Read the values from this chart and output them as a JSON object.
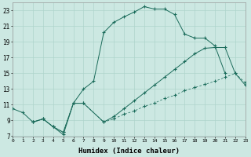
{
  "xlabel": "Humidex (Indice chaleur)",
  "background_color": "#cce8e2",
  "line_color": "#1a6b5a",
  "grid_color": "#aed4cc",
  "xlim": [
    0,
    23
  ],
  "ylim": [
    7,
    24
  ],
  "xticks": [
    0,
    1,
    2,
    3,
    4,
    5,
    6,
    7,
    8,
    9,
    10,
    11,
    12,
    13,
    14,
    15,
    16,
    17,
    18,
    19,
    20,
    21,
    22,
    23
  ],
  "yticks": [
    7,
    9,
    11,
    13,
    15,
    17,
    19,
    21,
    23
  ],
  "line1_x": [
    0,
    1,
    2,
    3,
    4,
    5,
    6,
    7,
    8,
    9,
    10,
    11,
    12,
    13,
    14,
    15,
    16,
    17,
    18,
    19,
    20,
    21
  ],
  "line1_y": [
    10.5,
    10.0,
    8.8,
    9.2,
    8.2,
    7.2,
    11.2,
    13.0,
    14.0,
    20.2,
    21.5,
    22.2,
    22.8,
    23.5,
    23.2,
    23.2,
    22.5,
    20.0,
    19.5,
    19.5,
    18.5,
    15.0
  ],
  "line2_x": [
    2,
    3,
    4,
    5,
    6,
    7,
    9,
    10,
    11,
    12,
    13,
    14,
    15,
    16,
    17,
    18,
    19,
    20,
    21,
    22,
    23
  ],
  "line2_y": [
    8.8,
    9.2,
    8.2,
    7.5,
    11.2,
    11.2,
    8.8,
    9.5,
    10.5,
    11.5,
    12.5,
    13.5,
    14.5,
    15.5,
    16.5,
    17.5,
    18.2,
    18.3,
    18.3,
    15.0,
    13.5
  ],
  "line3_x": [
    2,
    3,
    4,
    5,
    6,
    7,
    9,
    10,
    11,
    12,
    13,
    14,
    15,
    16,
    17,
    18,
    19,
    20,
    21,
    22,
    23
  ],
  "line3_y": [
    8.8,
    9.2,
    8.2,
    7.5,
    11.2,
    11.2,
    8.8,
    9.2,
    9.8,
    10.2,
    10.8,
    11.2,
    11.8,
    12.2,
    12.8,
    13.2,
    13.6,
    14.0,
    14.5,
    15.0,
    13.8
  ]
}
